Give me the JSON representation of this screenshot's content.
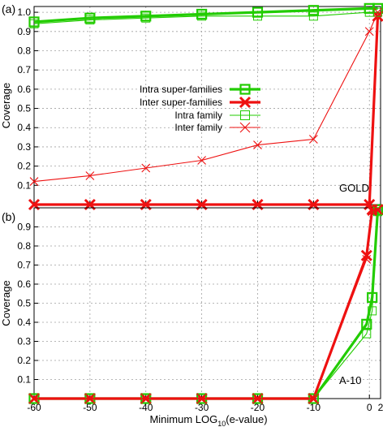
{
  "figure": {
    "xlabel_main": "Minimum LOG",
    "xlabel_sub": "10",
    "xlabel_tail": "(e-value)"
  },
  "chart_data": [
    {
      "type": "line",
      "panel_label": "(a)",
      "annotation": "GOLD",
      "ylabel": "Coverage",
      "xlim": [
        -60,
        2
      ],
      "ylim": [
        0,
        1.03
      ],
      "grid": true,
      "legend_position": "left-middle",
      "x_ticks": [
        -60,
        -50,
        -40,
        -30,
        -20,
        -10,
        0,
        2
      ],
      "y_ticks": [
        0.1,
        0.2,
        0.3,
        0.4,
        0.5,
        0.6,
        0.7,
        0.8,
        0.9,
        1.0
      ],
      "y_tick_labels": [
        "0.1",
        "0.2",
        "0.3",
        "0.4",
        "0.5",
        "0.6",
        "0.7",
        "0.8",
        "0.9",
        "1.0"
      ],
      "series": [
        {
          "name": "Intra super-families",
          "color": "#22cc00",
          "marker": "square",
          "weight": "thick",
          "x": [
            -60,
            -50,
            -40,
            -30,
            -20,
            -10,
            0,
            1.5
          ],
          "y": [
            0.95,
            0.97,
            0.98,
            0.99,
            1.0,
            1.01,
            1.02,
            1.02
          ]
        },
        {
          "name": "Inter super-families",
          "color": "#ee1111",
          "marker": "x",
          "weight": "thick",
          "x": [
            -60,
            -50,
            -40,
            -30,
            -20,
            -10,
            0,
            1.5
          ],
          "y": [
            0.0,
            0.0,
            0.0,
            0.0,
            0.0,
            0.0,
            0.0,
            0.98
          ]
        },
        {
          "name": "Intra family",
          "color": "#22cc00",
          "marker": "square",
          "weight": "thin",
          "x": [
            -60,
            -50,
            -40,
            -30,
            -20,
            -10,
            0,
            1.5
          ],
          "y": [
            0.94,
            0.96,
            0.97,
            0.98,
            0.98,
            0.98,
            1.0,
            1.0
          ]
        },
        {
          "name": "Inter family",
          "color": "#ee1111",
          "marker": "x",
          "weight": "thin",
          "x": [
            -60,
            -50,
            -40,
            -30,
            -20,
            -10,
            0,
            1.5
          ],
          "y": [
            0.12,
            0.15,
            0.19,
            0.23,
            0.31,
            0.34,
            0.9,
            1.0
          ]
        }
      ]
    },
    {
      "type": "line",
      "panel_label": "(b)",
      "annotation": "A-10",
      "ylabel": "Coverage",
      "xlim": [
        -60,
        2
      ],
      "ylim": [
        0,
        1.0
      ],
      "grid": true,
      "x_ticks": [
        -60,
        -50,
        -40,
        -30,
        -20,
        -10,
        0,
        2
      ],
      "x_tick_labels": [
        "-60",
        "-50",
        "-40",
        "-30",
        "-20",
        "-10",
        "0",
        "2"
      ],
      "y_ticks": [
        0.1,
        0.2,
        0.3,
        0.4,
        0.5,
        0.6,
        0.7,
        0.8,
        0.9
      ],
      "y_tick_labels": [
        "0.1",
        "0.2",
        "0.3",
        "0.4",
        "0.5",
        "0.6",
        "0.7",
        "0.8",
        "0.9"
      ],
      "series": [
        {
          "name": "Intra super-families",
          "color": "#22cc00",
          "marker": "square",
          "weight": "thick",
          "x": [
            -60,
            -50,
            -40,
            -30,
            -20,
            -10,
            -0.5,
            0.5,
            1.5
          ],
          "y": [
            0.0,
            0.0,
            0.0,
            0.0,
            0.0,
            0.0,
            0.39,
            0.53,
            0.99
          ]
        },
        {
          "name": "Inter super-families",
          "color": "#ee1111",
          "marker": "x",
          "weight": "thick",
          "x": [
            -60,
            -50,
            -40,
            -30,
            -20,
            -10,
            -0.5,
            0.5,
            1.5
          ],
          "y": [
            0.0,
            0.0,
            0.0,
            0.0,
            0.0,
            0.0,
            0.75,
            0.99,
            0.99
          ]
        },
        {
          "name": "Intra family",
          "color": "#22cc00",
          "marker": "square",
          "weight": "thin",
          "x": [
            -60,
            -50,
            -40,
            -30,
            -20,
            -10,
            -0.5,
            0.5,
            1.5
          ],
          "y": [
            0.0,
            0.0,
            0.0,
            0.0,
            0.0,
            0.0,
            0.34,
            0.46,
            0.98
          ]
        },
        {
          "name": "Inter family",
          "color": "#ee1111",
          "marker": "x",
          "weight": "thin",
          "x": [
            -60,
            -50,
            -40,
            -30,
            -20,
            -10,
            -0.5,
            0.5,
            1.5
          ],
          "y": [
            0.0,
            0.0,
            0.0,
            0.0,
            0.0,
            0.0,
            0.73,
            0.98,
            0.99
          ]
        }
      ]
    }
  ]
}
